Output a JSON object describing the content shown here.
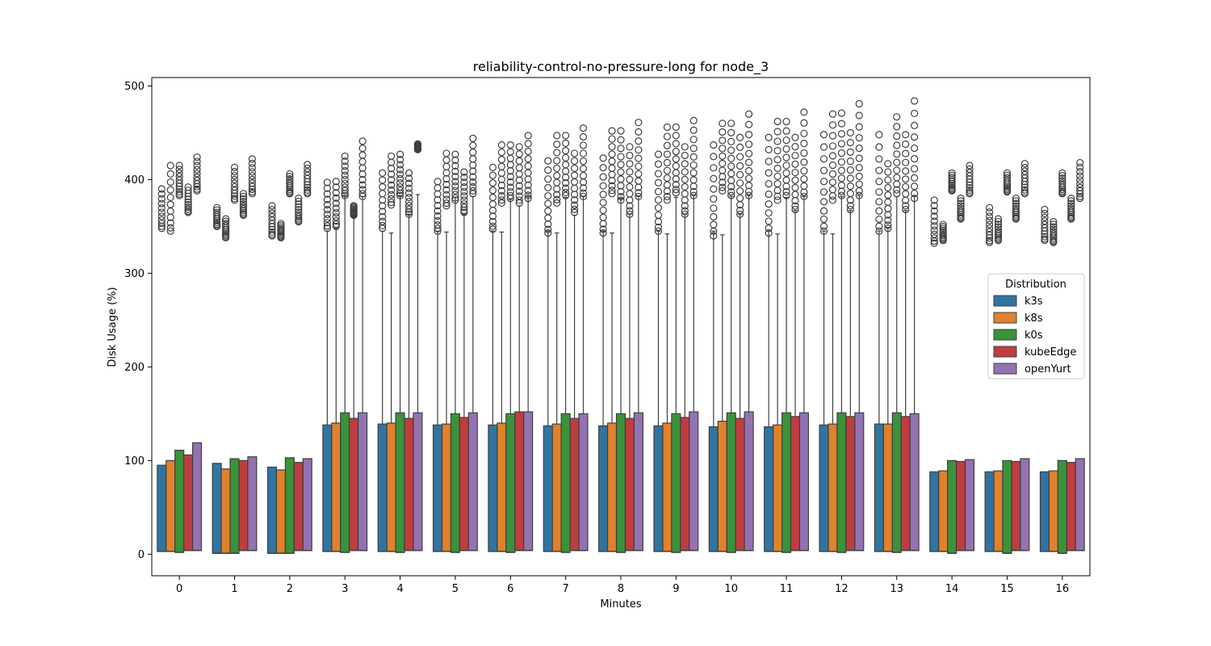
{
  "chart_data": {
    "type": "box",
    "title": "reliability-control-no-pressure-long for node_3",
    "xlabel": "Minutes",
    "ylabel": "Disk Usage (%)",
    "ylim": [
      -23,
      509
    ],
    "yticks": [
      0,
      100,
      200,
      300,
      400,
      500
    ],
    "categories": [
      "0",
      "1",
      "2",
      "3",
      "4",
      "5",
      "6",
      "7",
      "8",
      "9",
      "10",
      "11",
      "12",
      "13",
      "14",
      "15",
      "16"
    ],
    "legend": {
      "title": "Distribution",
      "placement": "center-right"
    },
    "grid": false,
    "series": [
      {
        "name": "k3s",
        "color": "#3274a1",
        "q1": [
          3,
          1,
          1,
          3,
          3,
          3,
          3,
          3,
          3,
          3,
          3,
          3,
          3,
          3,
          3,
          3,
          3
        ],
        "median": [
          3,
          1,
          1,
          3,
          3,
          3,
          3,
          3,
          3,
          3,
          3,
          3,
          3,
          3,
          3,
          3,
          3
        ],
        "q3": [
          95,
          97,
          93,
          138,
          139,
          138,
          138,
          137,
          137,
          137,
          136,
          136,
          138,
          139,
          88,
          88,
          88
        ],
        "whisker_high": [
          95,
          97,
          93,
          345,
          345,
          345,
          345,
          345,
          345,
          345,
          345,
          345,
          345,
          345,
          88,
          88,
          88
        ],
        "outlier_range": [
          [
            348,
            390
          ],
          [
            350,
            370
          ],
          [
            340,
            372
          ],
          [
            348,
            397
          ],
          [
            348,
            407
          ],
          [
            345,
            398
          ],
          [
            347,
            413
          ],
          [
            343,
            420
          ],
          [
            343,
            423
          ],
          [
            345,
            427
          ],
          [
            340,
            437
          ],
          [
            343,
            445
          ],
          [
            345,
            448
          ],
          [
            345,
            448
          ],
          [
            332,
            378
          ],
          [
            333,
            370
          ],
          [
            335,
            368
          ]
        ]
      },
      {
        "name": "k8s",
        "color": "#e1812c",
        "q1": [
          3,
          1,
          1,
          3,
          3,
          3,
          3,
          3,
          3,
          3,
          3,
          3,
          3,
          3,
          3,
          3,
          3
        ],
        "median": [
          3,
          1,
          1,
          3,
          3,
          3,
          3,
          3,
          3,
          3,
          3,
          3,
          3,
          3,
          3,
          3,
          3
        ],
        "q3": [
          100,
          91,
          90,
          140,
          140,
          139,
          140,
          139,
          140,
          140,
          142,
          138,
          139,
          139,
          89,
          89,
          89
        ],
        "whisker_high": [
          100,
          91,
          90,
          348,
          343,
          344,
          344,
          343,
          343,
          342,
          341,
          342,
          342,
          349,
          89,
          89,
          89
        ],
        "outlier_range": [
          [
            345,
            415
          ],
          [
            338,
            358
          ],
          [
            338,
            353
          ],
          [
            350,
            398
          ],
          [
            373,
            425
          ],
          [
            372,
            428
          ],
          [
            375,
            437
          ],
          [
            375,
            447
          ],
          [
            385,
            452
          ],
          [
            378,
            456
          ],
          [
            388,
            460
          ],
          [
            378,
            462
          ],
          [
            378,
            470
          ],
          [
            348,
            417
          ],
          [
            335,
            352
          ],
          [
            335,
            358
          ],
          [
            333,
            355
          ]
        ]
      },
      {
        "name": "k0s",
        "color": "#3a923a",
        "q1": [
          2,
          1,
          1,
          2,
          2,
          2,
          2,
          2,
          2,
          2,
          2,
          2,
          2,
          2,
          1,
          1,
          1
        ],
        "median": [
          2,
          1,
          1,
          2,
          2,
          2,
          2,
          2,
          2,
          2,
          2,
          2,
          2,
          2,
          1,
          1,
          1
        ],
        "q3": [
          111,
          102,
          103,
          151,
          151,
          150,
          150,
          150,
          150,
          150,
          151,
          151,
          151,
          151,
          100,
          100,
          100
        ],
        "whisker_high": [
          111,
          102,
          103,
          383,
          383,
          381,
          379,
          381,
          380,
          381,
          382,
          381,
          382,
          382,
          100,
          100,
          100
        ],
        "outlier_range": [
          [
            383,
            415
          ],
          [
            378,
            413
          ],
          [
            385,
            406
          ],
          [
            383,
            425
          ],
          [
            383,
            427
          ],
          [
            378,
            427
          ],
          [
            380,
            437
          ],
          [
            383,
            447
          ],
          [
            378,
            452
          ],
          [
            386,
            456
          ],
          [
            383,
            460
          ],
          [
            383,
            462
          ],
          [
            383,
            471
          ],
          [
            385,
            467
          ],
          [
            388,
            407
          ],
          [
            387,
            407
          ],
          [
            385,
            407
          ]
        ]
      },
      {
        "name": "kubeEdge",
        "color": "#c03d3e",
        "q1": [
          4,
          4,
          4,
          4,
          4,
          4,
          4,
          4,
          4,
          4,
          4,
          4,
          4,
          4,
          4,
          4,
          4
        ],
        "median": [
          4,
          4,
          4,
          4,
          4,
          4,
          4,
          4,
          4,
          4,
          4,
          4,
          4,
          4,
          4,
          4,
          4
        ],
        "q3": [
          106,
          100,
          98,
          145,
          145,
          146,
          152,
          145,
          145,
          146,
          145,
          147,
          147,
          147,
          99,
          99,
          98
        ],
        "whisker_high": [
          106,
          100,
          98,
          362,
          363,
          363,
          372,
          362,
          363,
          363,
          363,
          367,
          367,
          367,
          99,
          99,
          98
        ],
        "outlier_range": [
          [
            365,
            392
          ],
          [
            362,
            385
          ],
          [
            355,
            380
          ],
          [
            362,
            372
          ],
          [
            363,
            407
          ],
          [
            365,
            408
          ],
          [
            375,
            435
          ],
          [
            365,
            428
          ],
          [
            363,
            435
          ],
          [
            363,
            435
          ],
          [
            363,
            445
          ],
          [
            368,
            445
          ],
          [
            368,
            450
          ],
          [
            368,
            448
          ],
          [
            358,
            380
          ],
          [
            358,
            380
          ],
          [
            358,
            380
          ]
        ]
      },
      {
        "name": "openYurt",
        "color": "#9372b2",
        "q1": [
          4,
          4,
          4,
          4,
          4,
          4,
          4,
          4,
          4,
          4,
          4,
          4,
          4,
          4,
          4,
          4,
          4
        ],
        "median": [
          4,
          4,
          4,
          4,
          4,
          4,
          4,
          4,
          4,
          4,
          4,
          4,
          4,
          4,
          4,
          4,
          4
        ],
        "q3": [
          119,
          104,
          102,
          151,
          151,
          151,
          152,
          150,
          151,
          152,
          152,
          151,
          151,
          150,
          101,
          102,
          102
        ],
        "whisker_high": [
          119,
          104,
          102,
          382,
          384,
          382,
          382,
          382,
          382,
          383,
          383,
          382,
          383,
          382,
          101,
          102,
          102
        ],
        "outlier_range": [
          [
            388,
            424
          ],
          [
            385,
            422
          ],
          [
            385,
            416
          ],
          [
            382,
            441
          ],
          [
            432,
            438
          ],
          [
            385,
            444
          ],
          [
            380,
            447
          ],
          [
            382,
            455
          ],
          [
            382,
            461
          ],
          [
            383,
            463
          ],
          [
            383,
            470
          ],
          [
            382,
            472
          ],
          [
            383,
            481
          ],
          [
            380,
            484
          ],
          [
            385,
            415
          ],
          [
            385,
            417
          ],
          [
            380,
            418
          ]
        ]
      }
    ]
  }
}
